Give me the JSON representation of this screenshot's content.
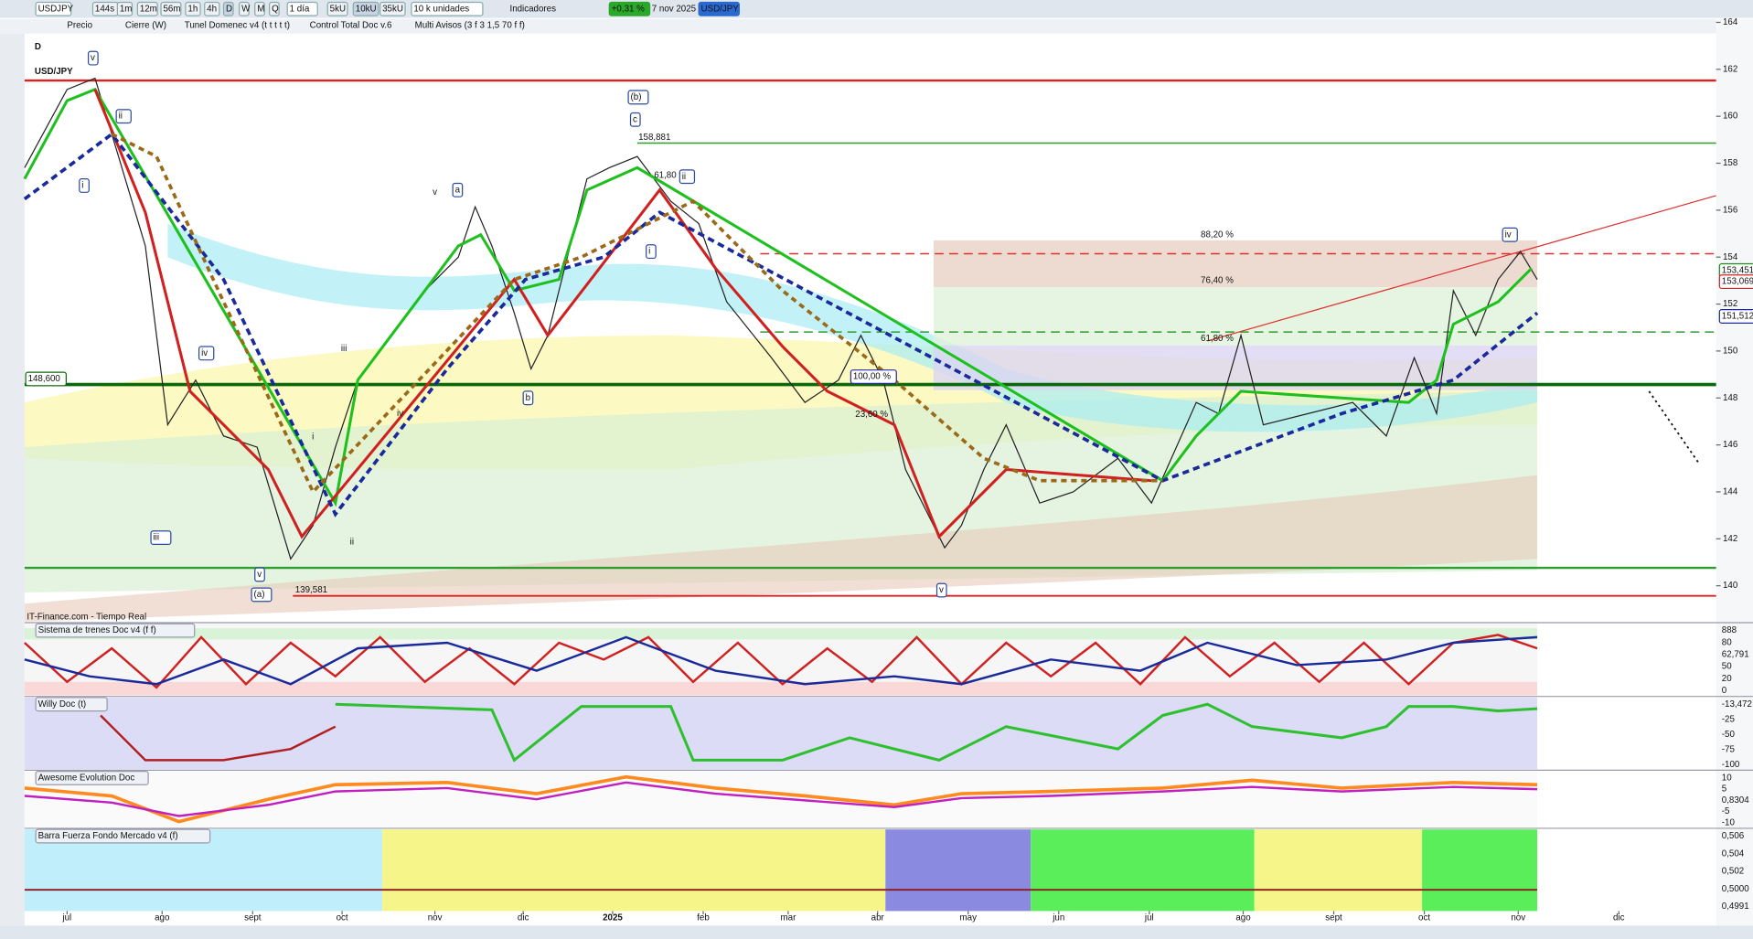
{
  "toolbar": {
    "symbol": "USDJPY",
    "intervals": [
      "144s",
      "1m",
      "12m",
      "56m",
      "1h",
      "4h",
      "D",
      "W",
      "M",
      "Q"
    ],
    "timeframe": "1 día",
    "units": [
      "5kU",
      "10kU",
      "35kU"
    ],
    "lot": "10 k unidades",
    "indicators": "Indicadores",
    "change": "+0,31 %",
    "date": "7 nov 2025",
    "pair": "USD/JPY"
  },
  "indicator_bar": [
    "Precio",
    "Cierre (W)",
    "Tunel Domenec v4 (t t t t t)",
    "Control Total Doc v.6",
    "Multi Avisos (3 f 3 1,5 70 f f)"
  ],
  "chart": {
    "period": "D",
    "title": "USD/JPY",
    "source": "IT-Finance.com - Tiempo Real",
    "price_ticks": [
      164,
      162,
      160,
      158,
      156,
      154,
      152,
      150,
      148,
      146,
      144,
      142,
      140
    ],
    "price_tags": [
      "153,451",
      "153,069",
      "151,512"
    ],
    "left_tag": "148,600",
    "price_annotations": [
      "158,881",
      "139,581",
      "88,20 %",
      "76,40 %",
      "61,80 %",
      "100,00 %",
      "23,60 %",
      "61,80 %"
    ],
    "wave_labels": [
      "v",
      "ii",
      "i",
      "iv",
      "iii",
      "v",
      "(a)",
      "(b)",
      "c",
      "a",
      "v",
      "i",
      "ii",
      "b",
      "iii",
      "iv",
      "ii",
      "i",
      "iv",
      "v"
    ]
  },
  "panels": [
    {
      "title": "Sistema de trenes Doc v4 (f f)",
      "axis": [
        "888",
        80,
        "62,791",
        50,
        20,
        0
      ]
    },
    {
      "title": "Willy Doc (t)",
      "axis": [
        "-13,472",
        "-25",
        "-50",
        "-75",
        "-100"
      ]
    },
    {
      "title": "Awesome Evolution Doc",
      "axis": [
        10,
        5,
        "0,8304",
        "-5",
        "-10"
      ]
    },
    {
      "title": "Barra Fuerza Fondo Mercado v4 (f)",
      "axis": [
        "0,506",
        "0,504",
        "0,502",
        "0,5000",
        "0,4991"
      ]
    }
  ],
  "time_axis": [
    "jul",
    "ago",
    "sept",
    "oct",
    "nov",
    "dic",
    "2025",
    "feb",
    "mar",
    "abr",
    "may",
    "jun",
    "jul",
    "ago",
    "sept",
    "oct",
    "nov",
    "dic"
  ]
}
